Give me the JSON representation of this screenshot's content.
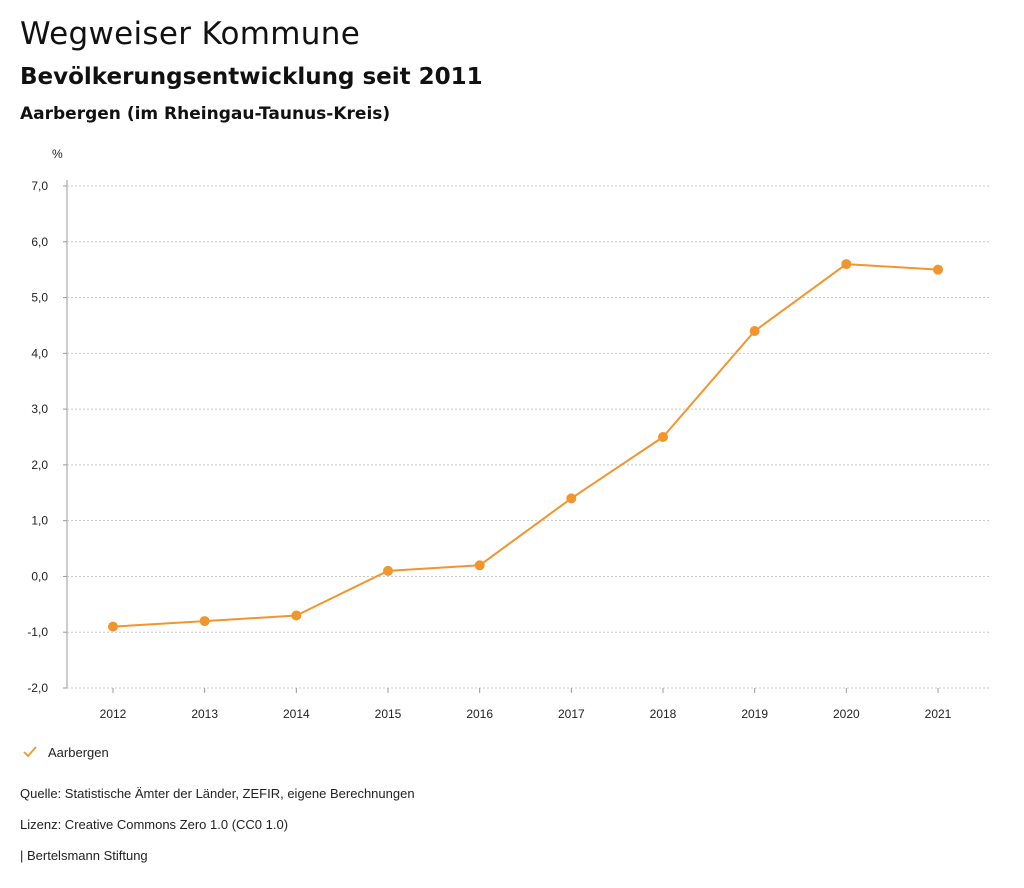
{
  "header": {
    "title": "Wegweiser Kommune",
    "subtitle": "Bevölkerungsentwicklung seit 2011",
    "region": "Aarbergen (im Rheingau-Taunus-Kreis)"
  },
  "chart_data": {
    "type": "line",
    "title": "Bevölkerungsentwicklung seit 2011",
    "ylabel": "%",
    "xlabel": "",
    "x": [
      "2012",
      "2013",
      "2014",
      "2015",
      "2016",
      "2017",
      "2018",
      "2019",
      "2020",
      "2021"
    ],
    "series": [
      {
        "name": "Aarbergen",
        "color": "#f0962d",
        "values": [
          -0.9,
          -0.8,
          -0.7,
          0.1,
          0.2,
          1.4,
          2.5,
          4.4,
          5.6,
          5.5
        ]
      }
    ],
    "ylim": [
      -2.0,
      7.0
    ],
    "yticks": [
      7.0,
      6.0,
      5.0,
      4.0,
      3.0,
      2.0,
      1.0,
      0.0,
      -1.0,
      -2.0
    ],
    "ytick_labels": [
      "7,0",
      "6,0",
      "5,0",
      "4,0",
      "3,0",
      "2,0",
      "1,0",
      "0,0",
      "-1,0",
      "-2,0"
    ],
    "grid": true,
    "legend": "bottom-left"
  },
  "legend": {
    "label": "Aarbergen"
  },
  "footer": {
    "source": "Quelle: Statistische Ämter der Länder, ZEFIR, eigene Berechnungen",
    "license": "Lizenz: Creative Commons Zero 1.0 (CC0 1.0)",
    "publisher": "| Bertelsmann Stiftung"
  },
  "colors": {
    "series": "#f0962d",
    "grid": "#c8c8c8",
    "axis": "#999999"
  }
}
